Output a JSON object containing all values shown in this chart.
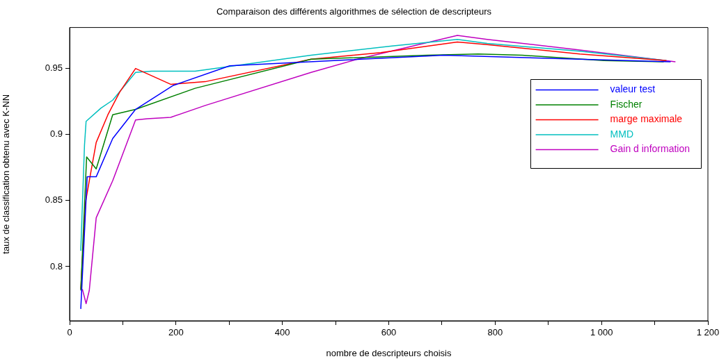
{
  "chart_data": {
    "type": "line",
    "title": "Comparaison des différents algorithmes de sélection de descripteurs",
    "xlabel": "nombre de descripteurs choisis",
    "ylabel": "taux de classification obtenu avec K-NN",
    "xlim": [
      0,
      1200
    ],
    "xticks": [
      0,
      {
        "value": 100,
        "label": null
      },
      200,
      {
        "value": 300,
        "label": null
      },
      400,
      {
        "value": 500,
        "label": null
      },
      600,
      {
        "value": 700,
        "label": null
      },
      800,
      {
        "value": 900,
        "label": null
      },
      {
        "value": 1000,
        "label": "1 000"
      },
      {
        "value": 1100,
        "label": null
      },
      {
        "value": 1200,
        "label": "1 200"
      }
    ],
    "ylim": [
      0.759,
      0.981
    ],
    "yticks": [
      0.8,
      0.85,
      0.9,
      0.95
    ],
    "grid": false,
    "legend": "right",
    "marker": "none",
    "line_style": "solid",
    "series": [
      {
        "name": "valeur test",
        "color": "#0000ff",
        "x": [
          21,
          33,
          50,
          81,
          124,
          194,
          301,
          497,
          650,
          703,
          1130
        ],
        "values": [
          0.768,
          0.868,
          0.868,
          0.897,
          0.919,
          0.937,
          0.952,
          0.956,
          0.959,
          0.96,
          0.955
        ]
      },
      {
        "name": "Fischer",
        "color": "#008000",
        "x": [
          21,
          32,
          50,
          81,
          124,
          236,
          454,
          672,
          768,
          851,
          1004,
          1117
        ],
        "values": [
          0.782,
          0.883,
          0.874,
          0.915,
          0.919,
          0.935,
          0.957,
          0.96,
          0.961,
          0.96,
          0.956,
          0.955
        ]
      },
      {
        "name": "marge maximale",
        "color": "#ff0000",
        "x": [
          21,
          30,
          37,
          50,
          72,
          94,
          124,
          190,
          255,
          454,
          585,
          729,
          785,
          959,
          1122
        ],
        "values": [
          0.783,
          0.849,
          0.865,
          0.894,
          0.915,
          0.932,
          0.95,
          0.938,
          0.94,
          0.957,
          0.962,
          0.97,
          0.968,
          0.961,
          0.956
        ]
      },
      {
        "name": "MMD",
        "color": "#00bfbf",
        "x": [
          21,
          28,
          31,
          59,
          81,
          124,
          154,
          236,
          454,
          606,
          729,
          785,
          959,
          1122
        ],
        "values": [
          0.812,
          0.892,
          0.91,
          0.92,
          0.926,
          0.947,
          0.948,
          0.948,
          0.96,
          0.967,
          0.972,
          0.969,
          0.963,
          0.956
        ]
      },
      {
        "name": "Gain d information",
        "color": "#bf00bf",
        "x": [
          24,
          31,
          37,
          50,
          81,
          124,
          146,
          190,
          255,
          454,
          541,
          729,
          785,
          959,
          1139
        ],
        "values": [
          0.783,
          0.772,
          0.782,
          0.837,
          0.865,
          0.911,
          0.912,
          0.913,
          0.922,
          0.947,
          0.957,
          0.975,
          0.972,
          0.964,
          0.955
        ]
      }
    ]
  }
}
